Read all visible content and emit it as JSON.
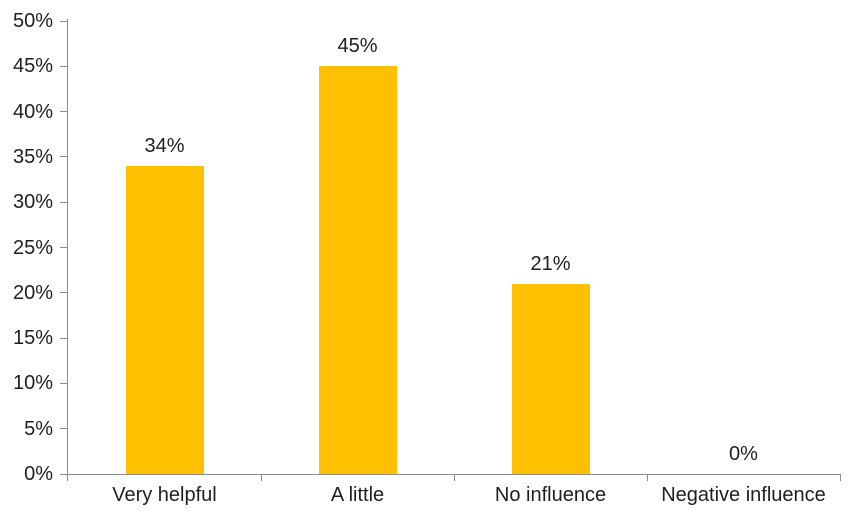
{
  "chart_data": {
    "type": "bar",
    "title": "",
    "xlabel": "",
    "ylabel": "",
    "categories": [
      "Very helpful",
      "A little",
      "No influence",
      "Negative influence"
    ],
    "values": [
      34,
      45,
      21,
      0
    ],
    "data_labels": [
      "34%",
      "45%",
      "21%",
      "0%"
    ],
    "ylim": [
      0,
      50
    ],
    "y_ticks": [
      0,
      5,
      10,
      15,
      20,
      25,
      30,
      35,
      40,
      45,
      50
    ],
    "y_tick_suffix": "%",
    "grid": false,
    "legend": false,
    "bar_color": "#FFC000",
    "axis_color": "#8C8C8C",
    "text_color": "#1F1F1F"
  }
}
